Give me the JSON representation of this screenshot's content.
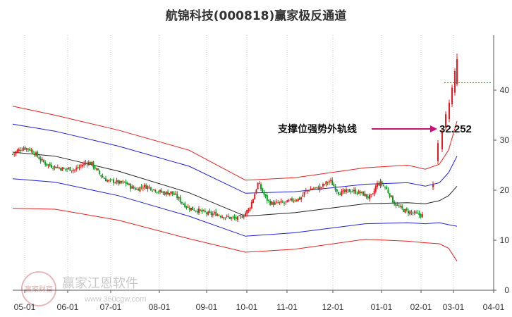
{
  "chart_data": {
    "type": "candlestick",
    "title": "航锦科技(000818)赢家极反通道",
    "x_ticks": [
      "05-01",
      "06-01",
      "07-01",
      "08-01",
      "09-01",
      "10-01",
      "11-01",
      "12-01",
      "01-01",
      "02-01",
      "03-01",
      "04-01"
    ],
    "y_ticks": [
      0,
      10,
      20,
      30,
      40
    ],
    "ylim": [
      0,
      48
    ],
    "grid": "vertical dotted",
    "annotation": {
      "text": "支撑位强势外轨线",
      "value": "32.252"
    },
    "watermark": {
      "text": "赢家江恩软件",
      "sub": "www.360cgw.com",
      "seal": "赢家财富"
    },
    "colors": {
      "up": "#e8191f",
      "down": "#0a9a20",
      "outer_band": "#e82020",
      "inner_band": "#2020d8",
      "mid_line": "#222222",
      "arrow": "#c8107a",
      "resistance": "#0a8a20"
    },
    "price_path": [
      [
        0,
        27.2
      ],
      [
        8,
        28
      ],
      [
        16,
        28.5
      ],
      [
        24,
        28.2
      ],
      [
        32,
        27.3
      ],
      [
        40,
        26
      ],
      [
        48,
        25.2
      ],
      [
        56,
        24.8
      ],
      [
        64,
        24.6
      ],
      [
        72,
        24.2
      ],
      [
        80,
        24.3
      ],
      [
        88,
        24.1
      ],
      [
        96,
        24.8
      ],
      [
        104,
        25.6
      ],
      [
        112,
        25.3
      ],
      [
        120,
        23.8
      ],
      [
        128,
        22.5
      ],
      [
        136,
        21.8
      ],
      [
        144,
        21.8
      ],
      [
        152,
        21.4
      ],
      [
        160,
        21.5
      ],
      [
        168,
        20.6
      ],
      [
        176,
        20.2
      ],
      [
        184,
        20.8
      ],
      [
        192,
        20.7
      ],
      [
        200,
        20.2
      ],
      [
        208,
        19.7
      ],
      [
        216,
        19.4
      ],
      [
        224,
        19.6
      ],
      [
        232,
        18.8
      ],
      [
        240,
        17.5
      ],
      [
        248,
        16.6
      ],
      [
        256,
        16.2
      ],
      [
        264,
        15.9
      ],
      [
        272,
        15.5
      ],
      [
        280,
        15.2
      ],
      [
        288,
        15.3
      ],
      [
        296,
        14.9
      ],
      [
        304,
        14.6
      ],
      [
        312,
        14.4
      ],
      [
        320,
        14.3
      ],
      [
        328,
        15.1
      ],
      [
        336,
        16.5
      ],
      [
        342,
        18.8
      ],
      [
        348,
        21.5
      ],
      [
        354,
        19.7
      ],
      [
        360,
        18.2
      ],
      [
        366,
        17.4
      ],
      [
        372,
        17.3
      ],
      [
        378,
        17.5
      ],
      [
        384,
        17.4
      ],
      [
        390,
        17.6
      ],
      [
        396,
        18.1
      ],
      [
        402,
        18.2
      ],
      [
        408,
        18.3
      ],
      [
        414,
        19.6
      ],
      [
        420,
        20.1
      ],
      [
        426,
        20.4
      ],
      [
        432,
        20.3
      ],
      [
        438,
        20.7
      ],
      [
        444,
        21.4
      ],
      [
        450,
        21.9
      ],
      [
        456,
        20.7
      ],
      [
        462,
        19.6
      ],
      [
        468,
        19.5
      ],
      [
        474,
        19.8
      ],
      [
        480,
        19.9
      ],
      [
        486,
        19.7
      ],
      [
        492,
        19.5
      ],
      [
        498,
        19.2
      ],
      [
        504,
        18.6
      ],
      [
        510,
        18.8
      ],
      [
        516,
        21.2
      ],
      [
        522,
        21.4
      ],
      [
        528,
        20.6
      ],
      [
        534,
        19.3
      ],
      [
        540,
        17.6
      ],
      [
        546,
        16.8
      ],
      [
        552,
        16.2
      ],
      [
        558,
        15.8
      ],
      [
        564,
        15.6
      ],
      [
        570,
        15.3
      ],
      [
        576,
        15.1
      ],
      [
        582,
        15.0
      ]
    ],
    "gap_candles": [
      [
        596,
        20.6,
        21.2
      ],
      [
        603,
        25.8,
        29.4
      ],
      [
        609,
        28.2,
        31.6
      ],
      [
        614,
        32.6,
        35.2
      ],
      [
        619,
        34.2,
        37.5
      ],
      [
        623,
        37.2,
        40.5
      ],
      [
        627,
        39.5,
        43.8
      ]
    ],
    "bands": {
      "outer_upper": [
        [
          0,
          36.8
        ],
        [
          60,
          35
        ],
        [
          150,
          32
        ],
        [
          250,
          28
        ],
        [
          330,
          22
        ],
        [
          400,
          22.5
        ],
        [
          500,
          24.5
        ],
        [
          560,
          25
        ],
        [
          585,
          24.2
        ],
        [
          605,
          25.2
        ],
        [
          618,
          28
        ],
        [
          630,
          33.8
        ]
      ],
      "inner_upper": [
        [
          0,
          33.2
        ],
        [
          60,
          31.8
        ],
        [
          150,
          28.8
        ],
        [
          250,
          24.8
        ],
        [
          330,
          19.4
        ],
        [
          400,
          19.7
        ],
        [
          500,
          21.2
        ],
        [
          560,
          21.5
        ],
        [
          585,
          20.8
        ],
        [
          605,
          21.5
        ],
        [
          618,
          23.5
        ],
        [
          630,
          26.8
        ]
      ],
      "mid": [
        [
          0,
          27.6
        ],
        [
          60,
          26.8
        ],
        [
          150,
          23.8
        ],
        [
          250,
          19.5
        ],
        [
          330,
          14.8
        ],
        [
          400,
          15.5
        ],
        [
          500,
          17.3
        ],
        [
          560,
          17.5
        ],
        [
          585,
          17.3
        ],
        [
          605,
          17.9
        ],
        [
          618,
          18.9
        ],
        [
          630,
          20.8
        ]
      ],
      "inner_lower": [
        [
          0,
          22.3
        ],
        [
          60,
          21.6
        ],
        [
          150,
          18.9
        ],
        [
          250,
          14.8
        ],
        [
          330,
          10.8
        ],
        [
          400,
          11.5
        ],
        [
          500,
          13.3
        ],
        [
          560,
          13.5
        ],
        [
          585,
          13.3
        ],
        [
          605,
          13.5
        ],
        [
          618,
          13.1
        ],
        [
          630,
          12.8
        ]
      ],
      "outer_lower": [
        [
          0,
          16.4
        ],
        [
          60,
          16.2
        ],
        [
          150,
          14
        ],
        [
          250,
          10.3
        ],
        [
          330,
          7.6
        ],
        [
          400,
          8.2
        ],
        [
          500,
          10.2
        ],
        [
          560,
          9.8
        ],
        [
          585,
          9.5
        ],
        [
          605,
          9.3
        ],
        [
          618,
          8.4
        ],
        [
          630,
          5.8
        ]
      ]
    },
    "support_level": 32.252,
    "resistance_level": 41.5
  }
}
